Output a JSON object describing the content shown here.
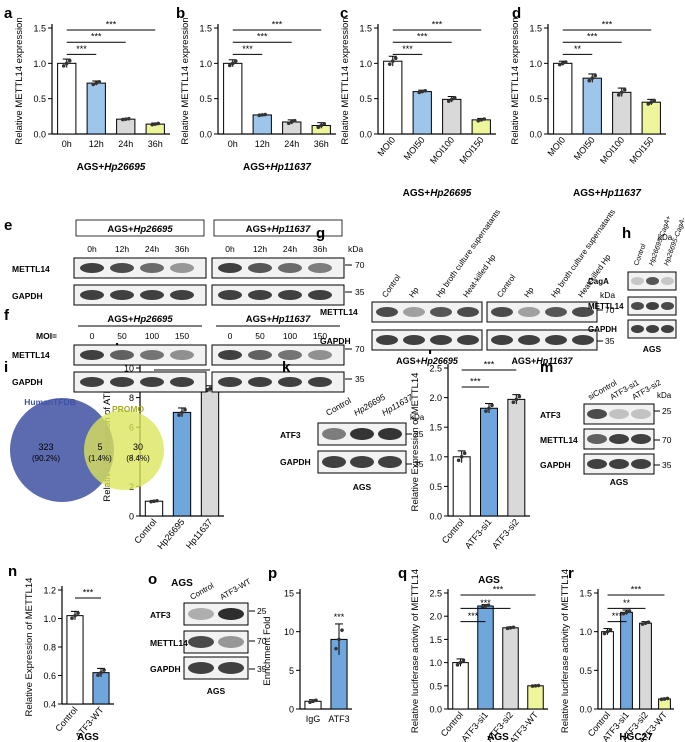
{
  "panels": [
    {
      "id": "a",
      "type": "bar",
      "label": "a",
      "ylabel": "Relative METTL14 expression",
      "xlabel": "AGS+Hp26695",
      "ylim": [
        0,
        1.5
      ],
      "yticks": [
        0.0,
        0.5,
        1.0,
        1.5
      ],
      "tick_fmt": 1,
      "categories": [
        "0h",
        "12h",
        "24h",
        "36h"
      ],
      "values": [
        1.0,
        0.72,
        0.21,
        0.14
      ],
      "errors": [
        0.06,
        0.03,
        0.01,
        0.015
      ],
      "colors": [
        "#ffffff",
        "#9ec5ea",
        "#d9d9d9",
        "#eef59a"
      ],
      "rot": false,
      "sig": [
        {
          "a": 0,
          "b": 1,
          "t": "***"
        },
        {
          "a": 0,
          "b": 2,
          "t": "***"
        },
        {
          "a": 0,
          "b": 3,
          "t": "***"
        }
      ]
    },
    {
      "id": "b",
      "type": "bar",
      "label": "b",
      "ylabel": "Relative METTL14 expression",
      "xlabel": "AGS+Hp11637",
      "ylim": [
        0,
        1.5
      ],
      "yticks": [
        0.0,
        0.5,
        1.0,
        1.5
      ],
      "tick_fmt": 1,
      "categories": [
        "0h",
        "12h",
        "24h",
        "36h"
      ],
      "values": [
        1.0,
        0.27,
        0.17,
        0.12
      ],
      "errors": [
        0.05,
        0.01,
        0.03,
        0.04
      ],
      "colors": [
        "#ffffff",
        "#9ec5ea",
        "#d9d9d9",
        "#eef59a"
      ],
      "rot": false,
      "sig": [
        {
          "a": 0,
          "b": 1,
          "t": "***"
        },
        {
          "a": 0,
          "b": 2,
          "t": "***"
        },
        {
          "a": 0,
          "b": 3,
          "t": "***"
        }
      ]
    },
    {
      "id": "c",
      "type": "bar",
      "label": "c",
      "ylabel": "Relative METTL14 expression",
      "xlabel": "AGS+Hp26695",
      "ylim": [
        0,
        1.5
      ],
      "yticks": [
        0.0,
        0.5,
        1.0,
        1.5
      ],
      "tick_fmt": 1,
      "categories": [
        "MOI0",
        "MOI50",
        "MOI100",
        "MOI150"
      ],
      "values": [
        1.03,
        0.6,
        0.49,
        0.2
      ],
      "errors": [
        0.07,
        0.02,
        0.04,
        0.02
      ],
      "colors": [
        "#ffffff",
        "#9ec5ea",
        "#d9d9d9",
        "#eef59a"
      ],
      "rot": true,
      "sig": [
        {
          "a": 0,
          "b": 1,
          "t": "***"
        },
        {
          "a": 0,
          "b": 2,
          "t": "***"
        },
        {
          "a": 0,
          "b": 3,
          "t": "***"
        }
      ]
    },
    {
      "id": "d",
      "type": "bar",
      "label": "d",
      "ylabel": "Relative METTL14 expression",
      "xlabel": "AGS+Hp11637",
      "ylim": [
        0,
        1.5
      ],
      "yticks": [
        0.0,
        0.5,
        1.0,
        1.5
      ],
      "tick_fmt": 1,
      "categories": [
        "MOI0",
        "MOI50",
        "MOI100",
        "MOI150"
      ],
      "values": [
        1.0,
        0.79,
        0.59,
        0.45
      ],
      "errors": [
        0.03,
        0.06,
        0.06,
        0.04
      ],
      "colors": [
        "#ffffff",
        "#9ec5ea",
        "#d9d9d9",
        "#eef59a"
      ],
      "rot": true,
      "sig": [
        {
          "a": 0,
          "b": 1,
          "t": "**"
        },
        {
          "a": 0,
          "b": 2,
          "t": "***"
        },
        {
          "a": 0,
          "b": 3,
          "t": "***"
        }
      ]
    },
    {
      "id": "j",
      "type": "bar",
      "label": "j",
      "ylabel": "Relative Expression of ATF3",
      "xlabel": "AGS",
      "ylim": [
        0,
        10
      ],
      "yticks": [
        0,
        2,
        4,
        6,
        8,
        10
      ],
      "tick_fmt": 0,
      "categories": [
        "Control",
        "Hp26695",
        "Hp11637"
      ],
      "values": [
        1.0,
        7.0,
        8.6
      ],
      "errors": [
        0.05,
        0.3,
        0.2
      ],
      "colors": [
        "#ffffff",
        "#6fa6dc",
        "#d9d9d9"
      ],
      "rot": true,
      "sig": [
        {
          "a": 0,
          "b": 1,
          "t": "***"
        },
        {
          "a": 0,
          "b": 2,
          "t": "***"
        }
      ]
    },
    {
      "id": "l",
      "type": "bar",
      "label": "l",
      "ylabel": "Relative Expression of METTL14",
      "xlabel": "AGS",
      "ylim": [
        0,
        2.5
      ],
      "yticks": [
        0.0,
        0.5,
        1.0,
        1.5,
        2.0,
        2.5
      ],
      "tick_fmt": 1,
      "categories": [
        "Control",
        "ATF3-si1",
        "ATF3-si2"
      ],
      "values": [
        1.0,
        1.82,
        1.97
      ],
      "errors": [
        0.1,
        0.08,
        0.08
      ],
      "colors": [
        "#ffffff",
        "#6fa6dc",
        "#d9d9d9"
      ],
      "rot": true,
      "sig": [
        {
          "a": 0,
          "b": 1,
          "t": "***"
        },
        {
          "a": 0,
          "b": 2,
          "t": "***"
        }
      ]
    },
    {
      "id": "n",
      "type": "bar",
      "label": "n",
      "ylabel": "Relative Expression of METTL14",
      "xlabel": "AGS",
      "ylim": [
        0.4,
        1.2
      ],
      "yticks": [
        0.4,
        0.6,
        0.8,
        1.0,
        1.2
      ],
      "tick_fmt": 1,
      "categories": [
        "Control",
        "ATF3-WT"
      ],
      "values": [
        1.02,
        0.62
      ],
      "errors": [
        0.03,
        0.03
      ],
      "colors": [
        "#ffffff",
        "#6fa6dc"
      ],
      "rot": true,
      "sig": [
        {
          "a": 0,
          "b": 1,
          "t": "***"
        }
      ]
    },
    {
      "id": "p",
      "type": "bar",
      "label": "p",
      "ylabel": "Enrichment Fold",
      "xlabel": "",
      "ylim": [
        0,
        15
      ],
      "yticks": [
        0,
        5,
        10,
        15
      ],
      "tick_fmt": 0,
      "categories": [
        "IgG",
        "ATF3"
      ],
      "values": [
        1.0,
        9.0
      ],
      "errors": [
        0.2,
        2.0
      ],
      "colors": [
        "#ffffff",
        "#6fa6dc"
      ],
      "rot": false,
      "sig": [
        {
          "a": 1,
          "b": 1,
          "t": "***"
        }
      ]
    },
    {
      "id": "q",
      "type": "bar",
      "label": "q",
      "ylabel": "Relative luciferase activity of METTL14",
      "xlabel": "AGS",
      "ylim": [
        0,
        2.5
      ],
      "yticks": [
        0.0,
        0.5,
        1.0,
        1.5,
        2.0,
        2.5
      ],
      "tick_fmt": 1,
      "categories": [
        "Control",
        "ATF3-si1",
        "ATF3-si2",
        "ATF3-WT"
      ],
      "values": [
        1.0,
        2.22,
        1.75,
        0.5
      ],
      "errors": [
        0.08,
        0.03,
        0.02,
        0.01
      ],
      "colors": [
        "#ffffff",
        "#6fa6dc",
        "#d9d9d9",
        "#eef59a"
      ],
      "rot": true,
      "sig": [
        {
          "a": 0,
          "b": 1,
          "t": "***"
        },
        {
          "a": 0,
          "b": 2,
          "t": "***"
        },
        {
          "a": 0,
          "b": 3,
          "t": "***"
        }
      ]
    },
    {
      "id": "r",
      "type": "bar",
      "label": "r",
      "ylabel": "Relative luciferase activity of METTL14",
      "xlabel": "HGC27",
      "ylim": [
        0,
        1.5
      ],
      "yticks": [
        0.0,
        0.5,
        1.0,
        1.5
      ],
      "tick_fmt": 1,
      "categories": [
        "Control",
        "ATF3-si1",
        "ATF3-si2",
        "ATF3-WT"
      ],
      "values": [
        1.0,
        1.25,
        1.11,
        0.13
      ],
      "errors": [
        0.04,
        0.03,
        0.02,
        0.01
      ],
      "colors": [
        "#ffffff",
        "#6fa6dc",
        "#d9d9d9",
        "#eef59a"
      ],
      "rot": true,
      "sig": [
        {
          "a": 0,
          "b": 1,
          "t": "***"
        },
        {
          "a": 0,
          "b": 2,
          "t": "**"
        },
        {
          "a": 0,
          "b": 3,
          "t": "***"
        }
      ]
    }
  ],
  "blots": {
    "e": {
      "label": "e",
      "groups": [
        "AGS+Hp26695",
        "AGS+Hp11637"
      ],
      "lanes": [
        "0h",
        "12h",
        "24h",
        "36h"
      ],
      "rows": [
        "METTL14",
        "GAPDH"
      ],
      "kda_label": "kDa",
      "kda": [
        "70",
        "35"
      ]
    },
    "f": {
      "label": "f",
      "groups": [
        "AGS+Hp26695",
        "AGS+Hp11637"
      ],
      "moi_label": "MOI=",
      "lanes": [
        "0",
        "50",
        "100",
        "150"
      ],
      "rows": [
        "METTL14",
        "GAPDH"
      ],
      "kda": [
        "70",
        "35"
      ]
    },
    "g": {
      "label": "g",
      "lanes": [
        "Control",
        "Hp",
        "Hp broth culture supernatants",
        "Heat-killed Hp"
      ],
      "rows": [
        "METTL14",
        "GAPDH"
      ],
      "groups": [
        "AGS+Hp26695",
        "AGS+Hp11637"
      ],
      "kda_label": "kDa",
      "kda": [
        "70",
        "35"
      ]
    },
    "h": {
      "label": "h",
      "lanes": [
        "Control",
        "Hp26695-CagA+",
        "Hp26695-CagA-"
      ],
      "rows": [
        "CagA",
        "METTL14",
        "GAPDH"
      ],
      "kda_label": "kDa",
      "kda": [
        "130",
        "70",
        "35"
      ],
      "cell": "AGS"
    },
    "k": {
      "label": "k",
      "lanes": [
        "Control",
        "Hp26695",
        "Hp11637"
      ],
      "rows": [
        "ATF3",
        "GAPDH"
      ],
      "kda_label": "kDa",
      "kda": [
        "25",
        "35"
      ],
      "cell": "AGS"
    },
    "m": {
      "label": "m",
      "lanes": [
        "siControl",
        "ATF3-si1",
        "ATF3-si2"
      ],
      "rows": [
        "ATF3",
        "METTL14",
        "GAPDH"
      ],
      "kda_label": "kDa",
      "kda": [
        "25",
        "70",
        "35"
      ],
      "cell": "AGS"
    },
    "o": {
      "label": "o",
      "lanes": [
        "Control",
        "ATF3-WT"
      ],
      "rows": [
        "ATF3",
        "METTL14",
        "GAPDH"
      ],
      "kda_label": "kDa",
      "kda": [
        "25",
        "70",
        "35"
      ],
      "cell": "AGS"
    }
  },
  "venn": {
    "label": "i",
    "left_name": "HumanTFDB",
    "right_name": "PROMO",
    "left_count": "323",
    "left_pct": "(90.2%)",
    "mid_count": "5",
    "mid_pct": "(1.4%)",
    "right_count": "30",
    "right_pct": "(8.4%)",
    "left_color": "#3f51a2",
    "right_color": "#dce55a"
  },
  "chart_data": [
    {
      "type": "bar",
      "panel": "a",
      "categories": [
        "0h",
        "12h",
        "24h",
        "36h"
      ],
      "values": [
        1.0,
        0.72,
        0.21,
        0.14
      ],
      "ylabel": "Relative METTL14 expression",
      "xlabel": "AGS+Hp26695",
      "ylim": [
        0,
        1.5
      ]
    },
    {
      "type": "bar",
      "panel": "b",
      "categories": [
        "0h",
        "12h",
        "24h",
        "36h"
      ],
      "values": [
        1.0,
        0.27,
        0.17,
        0.12
      ],
      "ylabel": "Relative METTL14 expression",
      "xlabel": "AGS+Hp11637",
      "ylim": [
        0,
        1.5
      ]
    },
    {
      "type": "bar",
      "panel": "c",
      "categories": [
        "MOI0",
        "MOI50",
        "MOI100",
        "MOI150"
      ],
      "values": [
        1.03,
        0.6,
        0.49,
        0.2
      ],
      "ylabel": "Relative METTL14 expression",
      "xlabel": "AGS+Hp26695",
      "ylim": [
        0,
        1.5
      ]
    },
    {
      "type": "bar",
      "panel": "d",
      "categories": [
        "MOI0",
        "MOI50",
        "MOI100",
        "MOI150"
      ],
      "values": [
        1.0,
        0.79,
        0.59,
        0.45
      ],
      "ylabel": "Relative METTL14 expression",
      "xlabel": "AGS+Hp11637",
      "ylim": [
        0,
        1.5
      ]
    },
    {
      "type": "bar",
      "panel": "j",
      "categories": [
        "Control",
        "Hp26695",
        "Hp11637"
      ],
      "values": [
        1.0,
        7.0,
        8.6
      ],
      "ylabel": "Relative Expression of ATF3",
      "xlabel": "AGS",
      "ylim": [
        0,
        10
      ]
    },
    {
      "type": "bar",
      "panel": "l",
      "categories": [
        "Control",
        "ATF3-si1",
        "ATF3-si2"
      ],
      "values": [
        1.0,
        1.82,
        1.97
      ],
      "ylabel": "Relative Expression of METTL14",
      "xlabel": "AGS",
      "ylim": [
        0,
        2.5
      ]
    },
    {
      "type": "bar",
      "panel": "n",
      "categories": [
        "Control",
        "ATF3-WT"
      ],
      "values": [
        1.02,
        0.62
      ],
      "ylabel": "Relative Expression of METTL14",
      "xlabel": "AGS",
      "ylim": [
        0.4,
        1.2
      ]
    },
    {
      "type": "bar",
      "panel": "p",
      "categories": [
        "IgG",
        "ATF3"
      ],
      "values": [
        1.0,
        9.0
      ],
      "ylabel": "Enrichment Fold",
      "ylim": [
        0,
        15
      ]
    },
    {
      "type": "bar",
      "panel": "q",
      "categories": [
        "Control",
        "ATF3-si1",
        "ATF3-si2",
        "ATF3-WT"
      ],
      "values": [
        1.0,
        2.22,
        1.75,
        0.5
      ],
      "ylabel": "Relative luciferase activity of METTL14",
      "xlabel": "AGS",
      "ylim": [
        0,
        2.5
      ]
    },
    {
      "type": "bar",
      "panel": "r",
      "categories": [
        "Control",
        "ATF3-si1",
        "ATF3-si2",
        "ATF3-WT"
      ],
      "values": [
        1.0,
        1.25,
        1.11,
        0.13
      ],
      "ylabel": "Relative luciferase activity of METTL14",
      "xlabel": "HGC27",
      "ylim": [
        0,
        1.5
      ]
    }
  ]
}
